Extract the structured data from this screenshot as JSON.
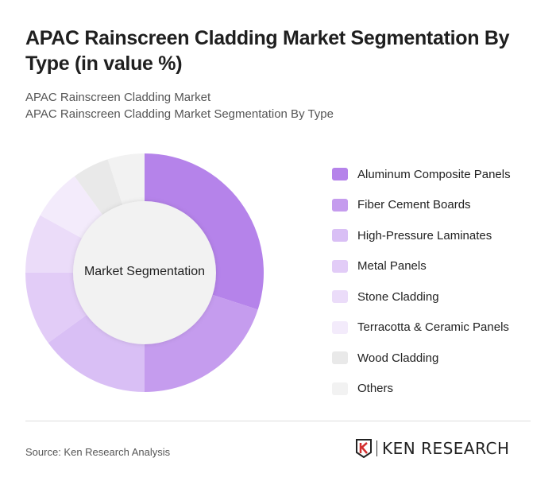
{
  "title": "APAC Rainscreen Cladding Market Segmentation By Type (in value %)",
  "subtitle1": "APAC Rainscreen Cladding Market",
  "subtitle2": "APAC Rainscreen Cladding Market Segmentation By Type",
  "chart_data": {
    "type": "pie",
    "variant": "donut",
    "center_label": "Market Segmentation",
    "legend_position": "right",
    "categories": [
      "Aluminum Composite Panels",
      "Fiber Cement Boards",
      "High-Pressure Laminates",
      "Metal Panels",
      "Stone Cladding",
      "Terracotta & Ceramic Panels",
      "Wood Cladding",
      "Others"
    ],
    "values": [
      30,
      20,
      15,
      10,
      8,
      7,
      5,
      5
    ],
    "colors": [
      "#b583ea",
      "#c59cee",
      "#d9bff5",
      "#e2ccf7",
      "#ebdcf9",
      "#f3ebfb",
      "#e9e9e9",
      "#f2f2f2"
    ]
  },
  "footer": {
    "source": "Source: Ken Research Analysis",
    "logo_text": "KEN RESEARCH"
  }
}
